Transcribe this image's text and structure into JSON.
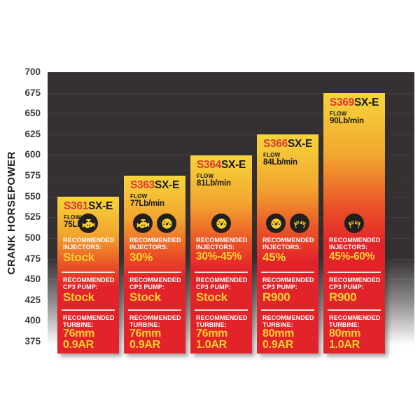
{
  "page": {
    "background": "#ffffff"
  },
  "chart_data": {
    "type": "bar",
    "title": "",
    "xlabel": "",
    "ylabel": "CRANK HORSEPOWER",
    "ylim": [
      375,
      700
    ],
    "yticks": [
      700,
      675,
      650,
      625,
      600,
      575,
      550,
      525,
      500,
      475,
      450,
      425,
      400,
      375
    ],
    "grid": true,
    "legend_position": "none",
    "categories": [
      "S361SX-E",
      "S363SX-E",
      "S364SX-E",
      "S366SX-E",
      "S369SX-E"
    ],
    "values": [
      550,
      575,
      600,
      625,
      675
    ],
    "series_name": "Crank Horsepower"
  },
  "colors": {
    "plot_background": "#353132",
    "gridline": "rgba(255,255,255,0.065)",
    "bar_gradient_top": "#f6d53b",
    "bar_gradient_mid": "#ea5127",
    "bar_gradient_bottom": "#e2232a",
    "model_prefix_red": "#e0392f",
    "model_suffix_black": "#191919",
    "value_yellow": "#ffd22e",
    "label_white": "#ffffff",
    "axis_text": "#3f3b3c",
    "icon_badge": "#211f1f"
  },
  "bars": [
    {
      "model_prefix": "S361",
      "model_suffix": "SX-E",
      "flow_label": "FLOW",
      "flow_value": "75Lb/min",
      "horsepower": 550,
      "icons": [
        "engine-icon"
      ],
      "sections": [
        {
          "label": "RECOMMENDED INJECTORS:",
          "value": "Stock"
        },
        {
          "label": "RECOMMENDED CP3 PUMP:",
          "value": "Stock"
        },
        {
          "label": "RECOMMENDED TURBINE:",
          "value": "76mm",
          "value2": "0.9AR"
        }
      ]
    },
    {
      "model_prefix": "S363",
      "model_suffix": "SX-E",
      "flow_label": "FLOW",
      "flow_value": "77Lb/min",
      "horsepower": 575,
      "icons": [
        "engine-icon",
        "gauge-icon"
      ],
      "sections": [
        {
          "label": "RECOMMENDED INJECTORS:",
          "value": "30%"
        },
        {
          "label": "RECOMMENDED CP3 PUMP:",
          "value": "Stock"
        },
        {
          "label": "RECOMMENDED TURBINE:",
          "value": "76mm",
          "value2": "0.9AR"
        }
      ]
    },
    {
      "model_prefix": "S364",
      "model_suffix": "SX-E",
      "flow_label": "FLOW",
      "flow_value": "81Lb/min",
      "horsepower": 600,
      "icons": [
        "gauge-icon"
      ],
      "sections": [
        {
          "label": "RECOMMENDED INJECTORS:",
          "value": "30%-45%"
        },
        {
          "label": "RECOMMENDED CP3 PUMP:",
          "value": "Stock"
        },
        {
          "label": "RECOMMENDED TURBINE:",
          "value": "76mm",
          "value2": "1.0AR"
        }
      ]
    },
    {
      "model_prefix": "S366",
      "model_suffix": "SX-E",
      "flow_label": "FLOW",
      "flow_value": "84Lb/min",
      "horsepower": 625,
      "icons": [
        "gauge-icon",
        "racing-flags-icon"
      ],
      "sections": [
        {
          "label": "RECOMMENDED INJECTORS:",
          "value": "45%"
        },
        {
          "label": "RECOMMENDED CP3 PUMP:",
          "value": "R900"
        },
        {
          "label": "RECOMMENDED TURBINE:",
          "value": "80mm",
          "value2": "0.9AR"
        }
      ]
    },
    {
      "model_prefix": "S369",
      "model_suffix": "SX-E",
      "flow_label": "FLOW",
      "flow_value": "90Lb/min",
      "horsepower": 675,
      "icons": [
        "racing-flags-icon"
      ],
      "sections": [
        {
          "label": "RECOMMENDED INJECTORS:",
          "value": "45%-60%"
        },
        {
          "label": "RECOMMENDED CP3 PUMP:",
          "value": "R900"
        },
        {
          "label": "RECOMMENDED TURBINE:",
          "value": "80mm",
          "value2": "1.0AR"
        }
      ]
    }
  ]
}
